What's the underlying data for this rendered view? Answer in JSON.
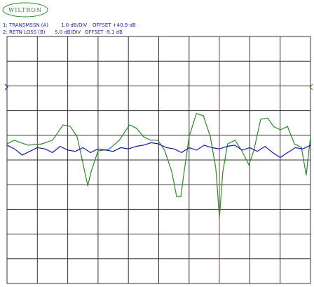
{
  "logo": "WILTRON",
  "chart_data": {
    "type": "line",
    "channels": [
      {
        "label": "1: TRANSMSSN (A)",
        "scale": "1.0 dB/DIV",
        "offset": "OFFSET +40.9 dB"
      },
      {
        "label": "2: RETN LOSS (B)",
        "scale": "5.0 dB/DIV",
        "offset": "OFFSET -9.1 dB"
      }
    ],
    "xlim": [
      0,
      10
    ],
    "ylim": [
      0,
      10
    ],
    "xticks": [
      0,
      1,
      2,
      3,
      4,
      5,
      6,
      7,
      8,
      9,
      10
    ],
    "yticks": [
      0,
      1,
      2,
      3,
      4,
      5,
      6,
      7,
      8,
      9,
      10
    ],
    "grid": true,
    "series": [
      {
        "color": "#2a8a2a",
        "x": [
          0,
          0.23,
          0.69,
          1.15,
          1.5,
          1.85,
          2.08,
          2.31,
          2.49,
          2.66,
          2.77,
          3.0,
          3.35,
          3.7,
          4.04,
          4.27,
          4.5,
          4.73,
          4.97,
          5.2,
          5.43,
          5.59,
          5.73,
          5.82,
          6.0,
          6.24,
          6.47,
          6.7,
          6.88,
          7.0,
          7.11,
          7.27,
          7.51,
          7.74,
          7.97,
          8.13,
          8.36,
          8.59,
          8.78,
          9.01,
          9.24,
          9.47,
          9.7,
          9.86,
          10
        ],
        "values": [
          5.65,
          5.8,
          5.6,
          5.65,
          5.8,
          6.42,
          6.36,
          5.94,
          4.94,
          3.95,
          4.52,
          5.37,
          5.43,
          5.8,
          6.42,
          6.28,
          5.94,
          5.8,
          5.8,
          5.37,
          4.52,
          3.52,
          3.52,
          4.38,
          5.94,
          6.88,
          6.79,
          5.94,
          4.66,
          2.67,
          4.52,
          5.65,
          5.8,
          5.37,
          4.8,
          5.37,
          6.65,
          6.7,
          6.36,
          6.22,
          6.36,
          5.65,
          5.51,
          4.38,
          5.94
        ]
      },
      {
        "color": "#1a1aaa",
        "x": [
          0,
          0.25,
          0.5,
          0.75,
          1,
          1.25,
          1.5,
          1.75,
          2,
          2.25,
          2.5,
          2.75,
          3,
          3.25,
          3.5,
          3.75,
          4,
          4.25,
          4.5,
          4.75,
          5,
          5.25,
          5.5,
          5.75,
          6,
          6.25,
          6.5,
          6.75,
          7,
          7.25,
          7.5,
          7.75,
          8,
          8.25,
          8.5,
          8.75,
          9,
          9.25,
          9.5,
          9.75,
          10
        ],
        "values": [
          5.6,
          5.45,
          5.2,
          5.35,
          5.5,
          5.45,
          5.3,
          5.55,
          5.4,
          5.35,
          5.5,
          5.3,
          5.45,
          5.4,
          5.35,
          5.5,
          5.45,
          5.55,
          5.6,
          5.7,
          5.65,
          5.5,
          5.45,
          5.3,
          5.5,
          5.4,
          5.6,
          5.5,
          5.45,
          5.55,
          5.6,
          5.4,
          5.5,
          5.35,
          5.55,
          5.3,
          5.1,
          5.3,
          5.5,
          5.45,
          5.6
        ]
      }
    ]
  }
}
